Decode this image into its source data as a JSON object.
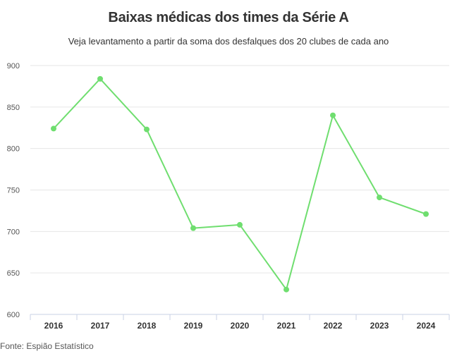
{
  "chart": {
    "title": "Baixas médicas dos times da Série A",
    "subtitle": "Veja levantamento a partir da soma dos desfalques dos 20 clubes de cada ano",
    "source": "Fonte: Espião Estatístico"
  },
  "colors": {
    "line": "#6fde6f",
    "grid": "#e6e6e6",
    "axis": "#c9d1e6"
  },
  "chart_data": {
    "type": "line",
    "title": "Baixas médicas dos times da Série A",
    "subtitle": "Veja levantamento a partir da soma dos desfalques dos 20 clubes de cada ano",
    "categories": [
      "2016",
      "2017",
      "2018",
      "2019",
      "2020",
      "2021",
      "2022",
      "2023",
      "2024"
    ],
    "values": [
      824,
      884,
      823,
      704,
      708,
      630,
      840,
      741,
      721
    ],
    "ylim": [
      600,
      900
    ],
    "yticks": [
      600,
      650,
      700,
      750,
      800,
      850,
      900
    ],
    "grid": true,
    "legend": "none"
  }
}
